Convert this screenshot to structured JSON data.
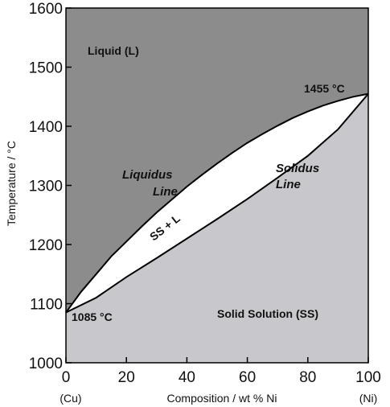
{
  "chart_data": {
    "type": "phase-diagram",
    "title": "",
    "xlabel": "Composition / wt % Ni",
    "ylabel": "Temperature / °C",
    "xlim": [
      0,
      100
    ],
    "ylim": [
      1000,
      1600
    ],
    "x_ticks": [
      0,
      20,
      40,
      60,
      80,
      100
    ],
    "y_ticks": [
      1000,
      1100,
      1200,
      1300,
      1400,
      1500,
      1600
    ],
    "x_end_labels": {
      "left": "(Cu)",
      "right": "(Ni)"
    },
    "regions": {
      "liquid": {
        "label": "Liquid (L)",
        "color": "#8c8c8c"
      },
      "two_phase": {
        "label": "SS + L",
        "color": "#ffffff"
      },
      "solid": {
        "label": "Solid Solution (SS)",
        "color": "#c8c7cc"
      }
    },
    "annotations": {
      "liquidus_label": [
        "Liquidus",
        "Line"
      ],
      "solidus_label": [
        "Solidus",
        "Line"
      ],
      "cu_melting": "1085 °C",
      "ni_melting": "1455 °C"
    },
    "liquidus": {
      "x": [
        0,
        5,
        10,
        15,
        20,
        25,
        30,
        35,
        40,
        45,
        50,
        55,
        60,
        65,
        70,
        75,
        80,
        85,
        90,
        95,
        100
      ],
      "y": [
        1085,
        1120,
        1150,
        1180,
        1205,
        1230,
        1254,
        1276,
        1298,
        1318,
        1337,
        1355,
        1372,
        1387,
        1401,
        1414,
        1425,
        1435,
        1443,
        1450,
        1455
      ]
    },
    "solidus": {
      "x": [
        0,
        10,
        20,
        30,
        40,
        50,
        60,
        70,
        80,
        90,
        100
      ],
      "y": [
        1085,
        1110,
        1145,
        1177,
        1210,
        1243,
        1277,
        1313,
        1350,
        1395,
        1455
      ]
    }
  }
}
